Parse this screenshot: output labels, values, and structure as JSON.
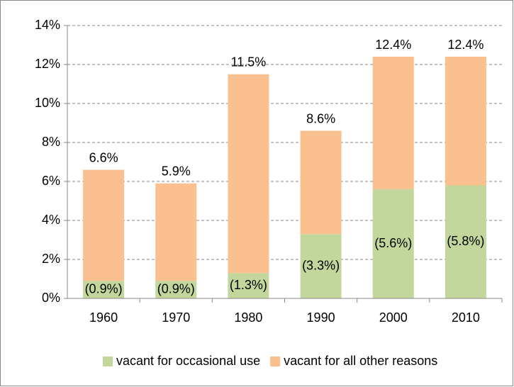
{
  "chart_data": {
    "type": "stacked_bar",
    "categories": [
      "1960",
      "1970",
      "1980",
      "1990",
      "2000",
      "2010"
    ],
    "series": [
      {
        "name": "vacant for occasional use",
        "color": "#c3d69b",
        "values": [
          0.9,
          0.9,
          1.3,
          3.3,
          5.6,
          5.8
        ],
        "value_labels": [
          "(0.9%)",
          "(0.9%)",
          "(1.3%)",
          "(3.3%)",
          "(5.6%)",
          "(5.8%)"
        ]
      },
      {
        "name": "vacant for all other reasons",
        "color": "#fac090",
        "values": [
          5.7,
          5.0,
          10.2,
          5.3,
          6.8,
          6.6
        ]
      }
    ],
    "totals": [
      6.6,
      5.9,
      11.5,
      8.6,
      12.4,
      12.4
    ],
    "total_labels": [
      "6.6%",
      "5.9%",
      "11.5%",
      "8.6%",
      "12.4%",
      "12.4%"
    ],
    "ylim": [
      0,
      14
    ],
    "yticks": [
      {
        "value": 0,
        "label": "0%"
      },
      {
        "value": 2,
        "label": "2%"
      },
      {
        "value": 4,
        "label": "4%"
      },
      {
        "value": 6,
        "label": "6%"
      },
      {
        "value": 8,
        "label": "8%"
      },
      {
        "value": 10,
        "label": "10%"
      },
      {
        "value": 12,
        "label": "12%"
      },
      {
        "value": 14,
        "label": "14%"
      }
    ],
    "grid": true,
    "legend": "bottom"
  }
}
